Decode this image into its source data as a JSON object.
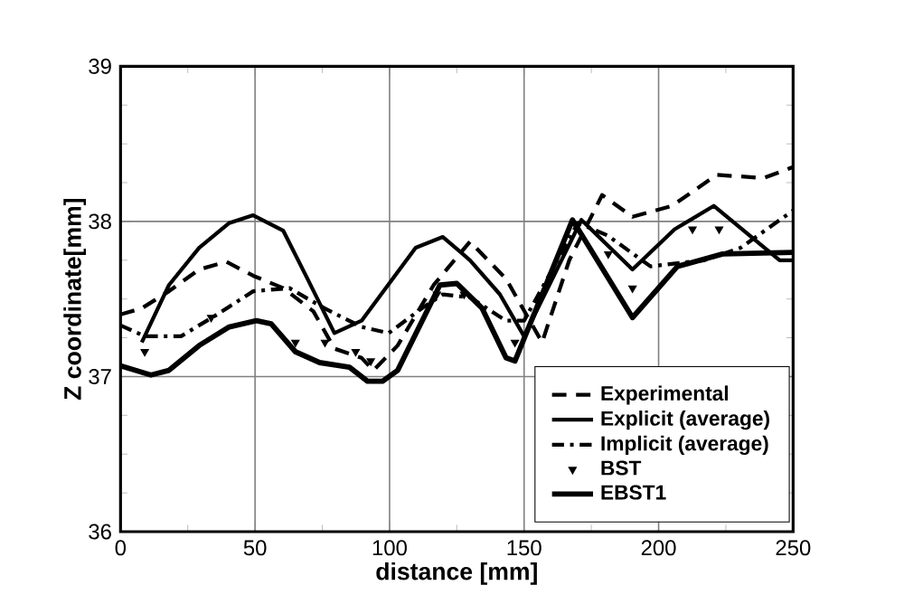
{
  "chart_data": {
    "type": "line",
    "xlabel": "distance [mm]",
    "ylabel": "Z coordinate[mm]",
    "xlim": [
      0,
      250
    ],
    "ylim": [
      36,
      39
    ],
    "xticks": [
      0,
      50,
      100,
      150,
      200,
      250
    ],
    "yticks": [
      36,
      37,
      38,
      39
    ],
    "grid": true,
    "legend": "bottom right",
    "series": [
      {
        "name": "Experimental",
        "color": "#000000",
        "line_style": "dashed",
        "marker": "none",
        "x": [
          0,
          7.9,
          18,
          29.2,
          39.3,
          49.3,
          60.5,
          71.7,
          79.5,
          89.6,
          94,
          103,
          116.4,
          129.9,
          143.3,
          156.7,
          166.8,
          179,
          190.3,
          205,
          221.6,
          239,
          250
        ],
        "values": [
          37.4,
          37.44,
          37.55,
          37.69,
          37.74,
          37.65,
          37.57,
          37.42,
          37.18,
          37.12,
          37.04,
          37.2,
          37.59,
          37.87,
          37.63,
          37.22,
          37.75,
          38.17,
          38.03,
          38.1,
          38.3,
          38.28,
          38.35
        ]
      },
      {
        "name": "Explicit (average)",
        "color": "#000000",
        "line_style": "solid",
        "marker": "none",
        "x": [
          7.9,
          18,
          29.2,
          40.4,
          49.3,
          60.5,
          69.5,
          79.5,
          89.6,
          109.7,
          119.8,
          129.9,
          141,
          150,
          171.3,
          190.3,
          206,
          220.5,
          245,
          250
        ],
        "values": [
          37.22,
          37.59,
          37.83,
          37.99,
          38.04,
          37.94,
          37.63,
          37.28,
          37.36,
          37.83,
          37.9,
          37.75,
          37.53,
          37.26,
          38.01,
          37.69,
          37.95,
          38.1,
          37.75,
          37.75
        ]
      },
      {
        "name": "Implicit (average)",
        "color": "#000000",
        "line_style": "dashdot",
        "marker": "none",
        "x": [
          0,
          9,
          22.5,
          35.9,
          49.3,
          62.8,
          75.8,
          89.6,
          99.7,
          112,
          119.8,
          129.9,
          143.3,
          150,
          170,
          181,
          197,
          217,
          230.5,
          250
        ],
        "values": [
          37.33,
          37.26,
          37.26,
          37.4,
          37.55,
          37.57,
          37.44,
          37.32,
          37.28,
          37.44,
          37.53,
          37.51,
          37.36,
          37.36,
          37.99,
          37.91,
          37.71,
          37.75,
          37.83,
          38.07
        ]
      },
      {
        "name": "BST",
        "type": "scatter",
        "color": "#000000",
        "marker": "triangle",
        "x": [
          9,
          33.7,
          65,
          76,
          87.4,
          93,
          117.6,
          127.7,
          146.6,
          181.3,
          190.3,
          212.6,
          222.5
        ],
        "values": [
          37.16,
          37.38,
          37.22,
          37.22,
          37.16,
          37.1,
          37.53,
          37.53,
          37.22,
          37.79,
          37.57,
          37.95,
          37.95
        ]
      },
      {
        "name": "EBST1",
        "color": "#000000",
        "line_style": "solid",
        "marker": "none",
        "x": [
          0,
          11.3,
          18,
          29.2,
          40.4,
          50.5,
          56,
          65,
          74,
          85.1,
          91.8,
          97.4,
          103,
          118.7,
          125,
          134.4,
          143.3,
          146.6,
          168,
          190.3,
          207,
          223.8,
          250
        ],
        "values": [
          37.07,
          37.01,
          37.04,
          37.2,
          37.32,
          37.36,
          37.34,
          37.16,
          37.09,
          37.06,
          36.97,
          36.97,
          37.04,
          37.59,
          37.6,
          37.44,
          37.12,
          37.1,
          38.01,
          37.38,
          37.71,
          37.79,
          37.8
        ]
      }
    ]
  }
}
